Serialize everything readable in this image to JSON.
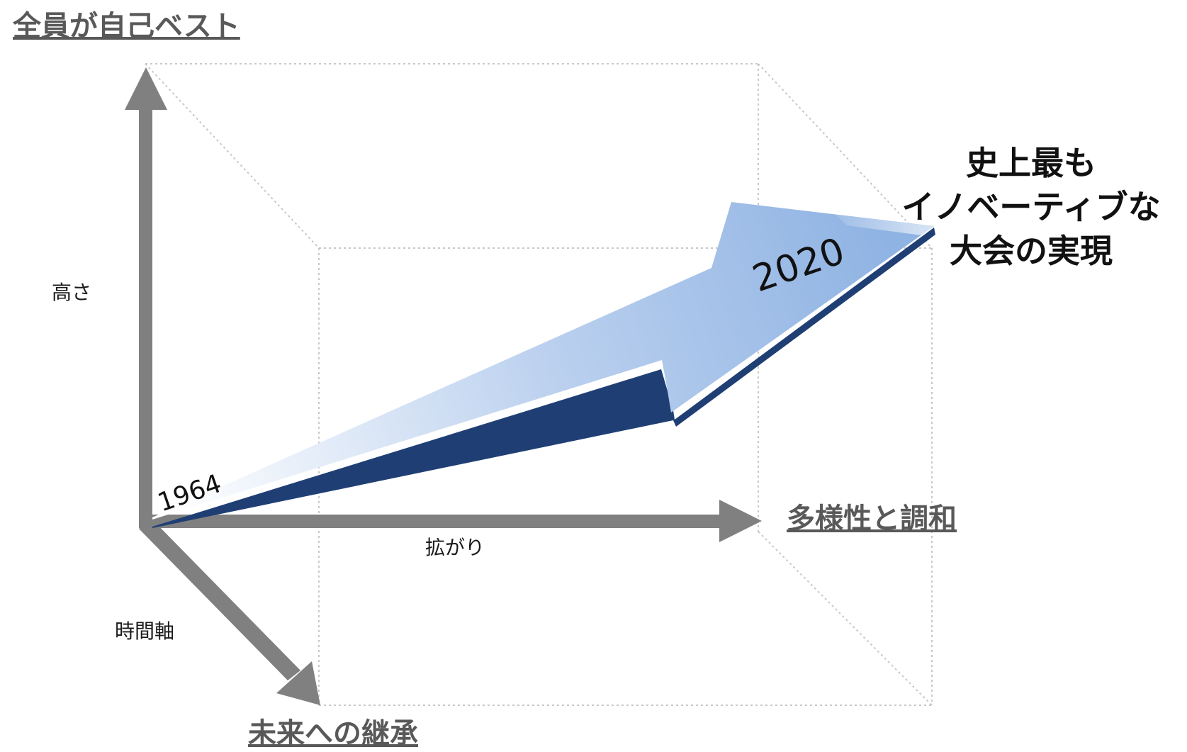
{
  "axes": {
    "vertical": {
      "title": "全員が自己ベスト",
      "label": "高さ"
    },
    "horizontal": {
      "title": "多様性と調和",
      "label": "拡がり"
    },
    "depth": {
      "title": "未来への継承",
      "label": "時間軸"
    }
  },
  "arrow": {
    "start_year": "1964",
    "end_year": "2020"
  },
  "goal": {
    "line1": "史上最も",
    "line2": "イノベーティブな",
    "line3": "大会の実現"
  },
  "colors": {
    "axis_arrow": "#808080",
    "box_line": "#c8c8c8",
    "arrow_light": "#ffffff",
    "arrow_fill": "#8fb3e3",
    "arrow_edge": "#1f3f74",
    "title_text": "#595959"
  }
}
